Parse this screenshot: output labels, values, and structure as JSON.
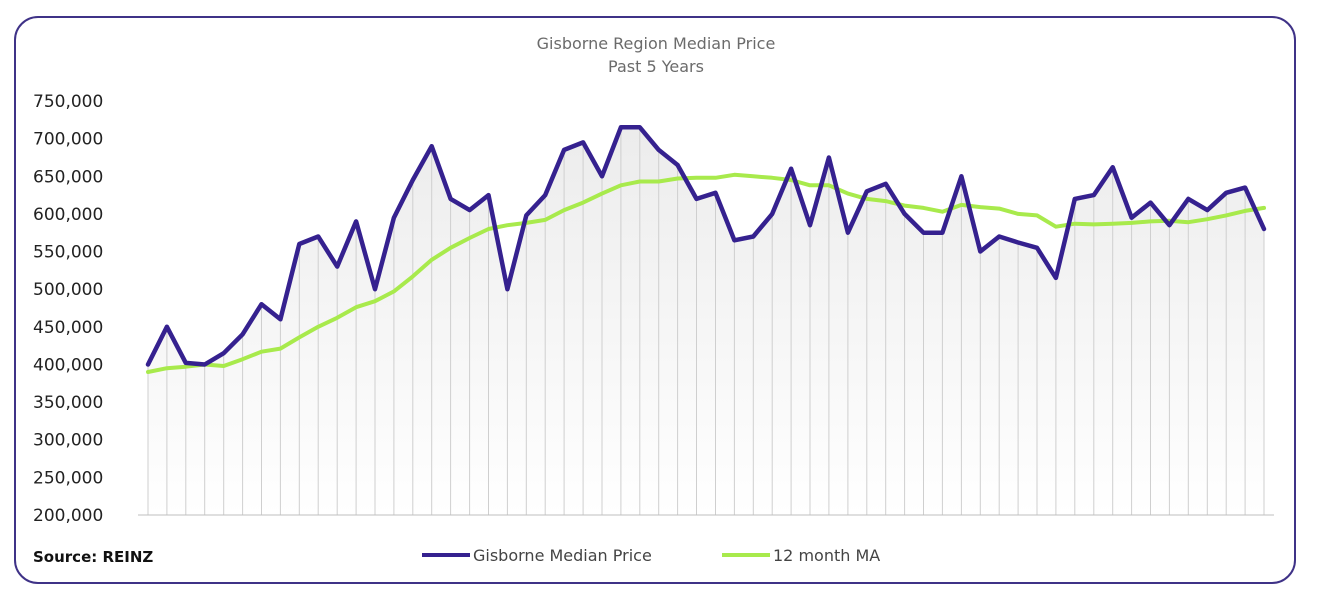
{
  "source_label": "Source: REINZ",
  "colors": {
    "border": "#3f3287",
    "median": "#35218f",
    "ma": "#a8ea4c",
    "grid": "#cfcfcf"
  },
  "chart_data": {
    "type": "line",
    "title": "Gisborne Region Median Price",
    "subtitle": "Past 5 Years",
    "xlabel": "",
    "ylabel": "",
    "ylim": [
      200000,
      750000
    ],
    "yticks": [
      200000,
      250000,
      300000,
      350000,
      400000,
      450000,
      500000,
      550000,
      600000,
      650000,
      700000,
      750000
    ],
    "ytick_labels": [
      "200,000",
      "250,000",
      "300,000",
      "350,000",
      "400,000",
      "450,000",
      "500,000",
      "550,000",
      "600,000",
      "650,000",
      "700,000",
      "750,000"
    ],
    "grid": "vertical",
    "legend_position": "bottom",
    "area_fill": "gradient under median series",
    "series": [
      {
        "name": "Gisborne Median Price",
        "color": "#35218f",
        "values": [
          400000,
          450000,
          402000,
          400000,
          415000,
          440000,
          480000,
          460000,
          560000,
          570000,
          530000,
          590000,
          500000,
          595000,
          645000,
          690000,
          620000,
          605000,
          625000,
          500000,
          598000,
          625000,
          685000,
          695000,
          650000,
          715000,
          715000,
          685000,
          665000,
          620000,
          628000,
          565000,
          570000,
          600000,
          660000,
          585000,
          675000,
          575000,
          630000,
          640000,
          600000,
          575000,
          575000,
          650000,
          550000,
          570000,
          562000,
          555000,
          515000,
          620000,
          625000,
          662000,
          595000,
          615000,
          585000,
          620000,
          605000,
          628000,
          635000,
          580000
        ]
      },
      {
        "name": "12 month MA",
        "color": "#a8ea4c",
        "values": [
          390000,
          395000,
          397000,
          400000,
          398000,
          407000,
          417000,
          421000,
          436000,
          450000,
          462000,
          476000,
          484000,
          497000,
          517000,
          539000,
          555000,
          568000,
          580000,
          585000,
          588000,
          592000,
          605000,
          615000,
          627000,
          638000,
          643000,
          643000,
          647000,
          648000,
          648000,
          652000,
          650000,
          648000,
          645000,
          638000,
          638000,
          627000,
          620000,
          617000,
          611000,
          608000,
          603000,
          612000,
          609000,
          607000,
          600000,
          598000,
          583000,
          587000,
          586000,
          587000,
          588000,
          590000,
          591000,
          589000,
          593000,
          598000,
          604000,
          608000
        ]
      }
    ]
  }
}
